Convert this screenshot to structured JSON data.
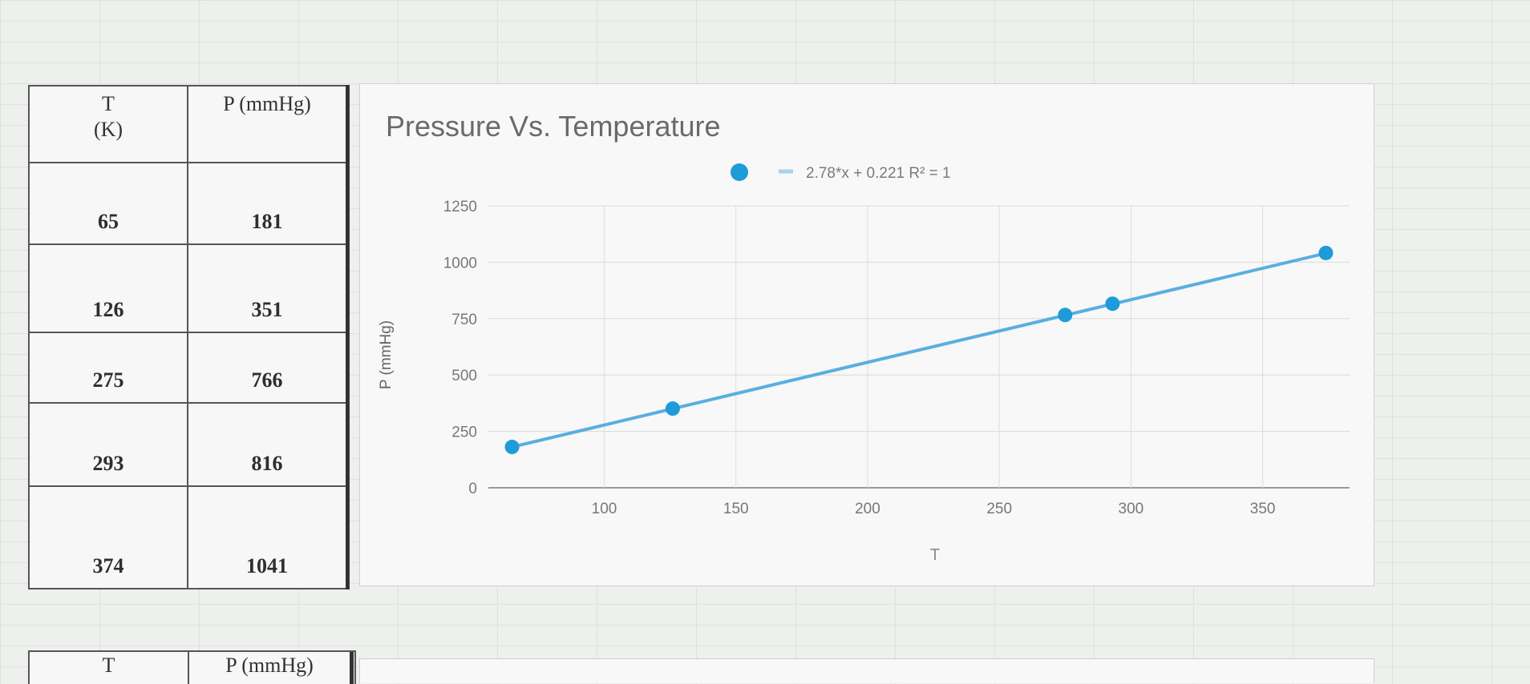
{
  "table": {
    "header_t_line1": "T",
    "header_t_line2": "(K)",
    "header_p": "P (mmHg)",
    "rows": [
      {
        "t": "65",
        "p": "181"
      },
      {
        "t": "126",
        "p": "351"
      },
      {
        "t": "275",
        "p": "766"
      },
      {
        "t": "293",
        "p": "816"
      },
      {
        "t": "374",
        "p": "1041"
      }
    ]
  },
  "next_table": {
    "header_t": "T",
    "header_p": "P (mmHg)"
  },
  "chart_data": {
    "type": "scatter",
    "title": "Pressure Vs. Temperature",
    "trendline_label": "2.78*x + 0.221 R² = 1",
    "trendline": {
      "slope": 2.78,
      "intercept": 0.221
    },
    "xlabel": "T",
    "ylabel": "P (mmHg)",
    "x": [
      65,
      126,
      275,
      293,
      374
    ],
    "y": [
      181,
      351,
      766,
      816,
      1041
    ],
    "xlim": [
      56,
      383
    ],
    "ylim": [
      0,
      1250
    ],
    "xticks": [
      100,
      150,
      200,
      250,
      300,
      350
    ],
    "yticks": [
      0,
      250,
      500,
      750,
      1000,
      1250
    ],
    "grid": true,
    "legend_position": "top-center",
    "colors": {
      "points": "#1e9bd8",
      "line": "#5aaee0",
      "legend_dash": "#a6d3ee"
    }
  }
}
